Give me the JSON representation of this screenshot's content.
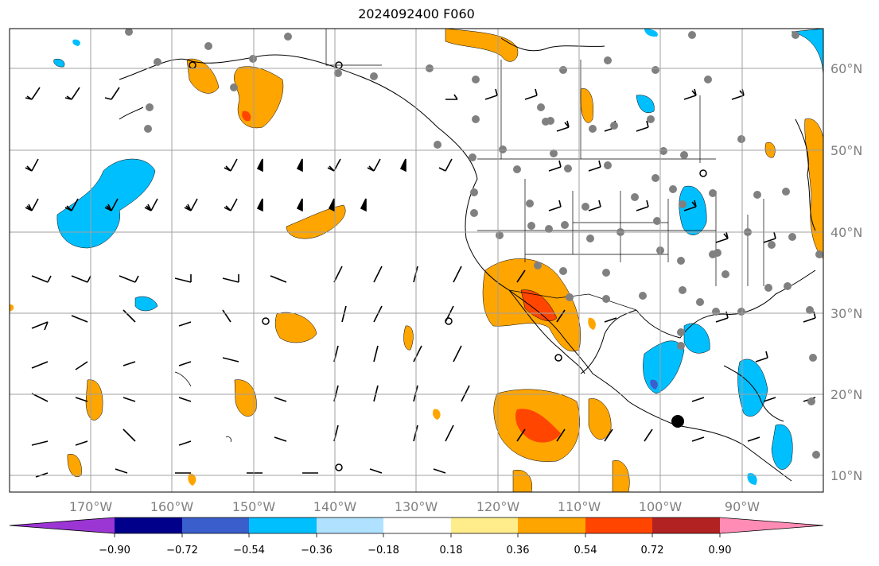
{
  "title": "2024092400 F060",
  "map": {
    "lon_range": [
      -180,
      -80
    ],
    "lat_range": [
      8,
      65
    ],
    "lon_ticks": [
      "170°W",
      "160°W",
      "150°W",
      "140°W",
      "130°W",
      "120°W",
      "110°W",
      "100°W",
      "90°W"
    ],
    "lat_ticks": [
      "10°N",
      "20°N",
      "30°N",
      "40°N",
      "50°N",
      "60°N"
    ],
    "gridlines": true
  },
  "colorbar": {
    "colors": [
      "#9b36d4",
      "#00008b",
      "#3a5fcd",
      "#00bfff",
      "#b0e2ff",
      "#ffffff",
      "#ffec8b",
      "#ffa500",
      "#ff4500",
      "#b22222",
      "#ff8cb4"
    ],
    "tick_labels": [
      "−0.90",
      "−0.72",
      "−0.54",
      "−0.36",
      "−0.18",
      "0.18",
      "0.36",
      "0.54",
      "0.72",
      "0.90"
    ],
    "extend": "both"
  }
}
